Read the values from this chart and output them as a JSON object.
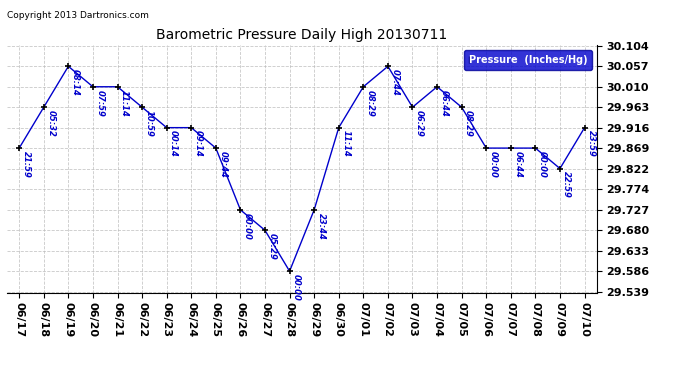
{
  "title": "Barometric Pressure Daily High 20130711",
  "copyright": "Copyright 2013 Dartronics.com",
  "legend_label": "Pressure  (Inches/Hg)",
  "dates": [
    "06/17",
    "06/18",
    "06/19",
    "06/20",
    "06/21",
    "06/22",
    "06/23",
    "06/24",
    "06/25",
    "06/26",
    "06/27",
    "06/28",
    "06/29",
    "06/30",
    "07/01",
    "07/02",
    "07/03",
    "07/04",
    "07/05",
    "07/06",
    "07/07",
    "07/08",
    "07/09",
    "07/10"
  ],
  "values": [
    29.869,
    29.963,
    30.057,
    30.01,
    30.01,
    29.963,
    29.916,
    29.916,
    29.869,
    29.727,
    29.68,
    29.586,
    29.727,
    29.916,
    30.01,
    30.057,
    29.963,
    30.01,
    29.963,
    29.869,
    29.869,
    29.869,
    29.822,
    29.916
  ],
  "time_labels": [
    "21:59",
    "05:32",
    "08:14",
    "07:59",
    "11:14",
    "10:59",
    "00:14",
    "09:14",
    "09:44",
    "00:00",
    "05:29",
    "00:00",
    "23:44",
    "11:14",
    "08:29",
    "07:44",
    "06:29",
    "06:44",
    "08:29",
    "00:00",
    "06:44",
    "00:00",
    "22:59",
    "23:59"
  ],
  "ylim": [
    29.539,
    30.104
  ],
  "yticks": [
    29.539,
    29.586,
    29.633,
    29.68,
    29.727,
    29.774,
    29.822,
    29.869,
    29.916,
    29.963,
    30.01,
    30.057,
    30.104
  ],
  "line_color": "#0000cc",
  "marker_color": "#000000",
  "bg_color": "#ffffff",
  "grid_color": "#bbbbbb",
  "title_color": "#000000",
  "legend_bg": "#0000cc",
  "legend_text_color": "#ffffff",
  "figsize": [
    6.9,
    3.75
  ],
  "dpi": 100
}
